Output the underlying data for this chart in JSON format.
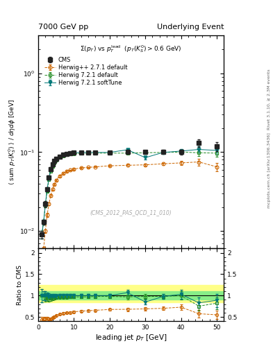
{
  "title_left": "7000 GeV pp",
  "title_right": "Underlying Event",
  "plot_title": "$\\Sigma(p_T)$ vs $p_T^{\\mathrm{lead}}$ $(p_T(K_S^0) > 0.6$ GeV)",
  "ylabel_main": "$\\langle$ sum $p_T(K_S^0)$ $\\rangle$ / $d\\eta d\\phi$ [GeV]",
  "ylabel_ratio": "Ratio to CMS",
  "xlabel": "leading jet $p_T$ [GeV]",
  "right_label1": "Rivet 3.1.10, ≥ 2.3M events",
  "right_label2": "mcplots.cern.ch [arXiv:1306.3436]",
  "watermark": "(CMS_2012_PAS_QCD_11_010)",
  "cms_x": [
    1.0,
    1.5,
    2.0,
    2.5,
    3.0,
    3.5,
    4.0,
    4.5,
    5.0,
    6.0,
    7.0,
    8.0,
    9.0,
    10.0,
    12.0,
    14.0,
    16.0,
    20.0,
    25.0,
    30.0,
    35.0,
    40.0,
    45.0,
    50.0
  ],
  "cms_y": [
    0.009,
    0.013,
    0.022,
    0.034,
    0.048,
    0.061,
    0.07,
    0.077,
    0.082,
    0.088,
    0.092,
    0.095,
    0.097,
    0.098,
    0.099,
    0.099,
    0.099,
    0.099,
    0.1,
    0.1,
    0.101,
    0.1,
    0.13,
    0.118
  ],
  "cms_yerr": [
    0.001,
    0.001,
    0.002,
    0.002,
    0.003,
    0.003,
    0.003,
    0.003,
    0.003,
    0.003,
    0.003,
    0.003,
    0.003,
    0.003,
    0.003,
    0.003,
    0.003,
    0.003,
    0.005,
    0.005,
    0.005,
    0.008,
    0.015,
    0.015
  ],
  "hpp_x": [
    1.0,
    1.5,
    2.0,
    2.5,
    3.0,
    3.5,
    4.0,
    4.5,
    5.0,
    6.0,
    7.0,
    8.0,
    9.0,
    10.0,
    12.0,
    14.0,
    16.0,
    20.0,
    25.0,
    30.0,
    35.0,
    40.0,
    45.0,
    50.0
  ],
  "hpp_y": [
    0.004,
    0.006,
    0.01,
    0.016,
    0.022,
    0.028,
    0.034,
    0.039,
    0.044,
    0.05,
    0.054,
    0.057,
    0.059,
    0.061,
    0.063,
    0.064,
    0.065,
    0.067,
    0.068,
    0.069,
    0.071,
    0.073,
    0.075,
    0.065
  ],
  "hpp_yerr": [
    0.0003,
    0.0003,
    0.0005,
    0.001,
    0.001,
    0.001,
    0.001,
    0.001,
    0.001,
    0.001,
    0.001,
    0.001,
    0.001,
    0.001,
    0.001,
    0.001,
    0.001,
    0.001,
    0.002,
    0.002,
    0.002,
    0.004,
    0.008,
    0.008
  ],
  "h721_x": [
    1.0,
    1.5,
    2.0,
    2.5,
    3.0,
    3.5,
    4.0,
    4.5,
    5.0,
    6.0,
    7.0,
    8.0,
    9.0,
    10.0,
    12.0,
    14.0,
    16.0,
    20.0,
    25.0,
    30.0,
    35.0,
    40.0,
    45.0,
    50.0
  ],
  "h721_y": [
    0.009,
    0.013,
    0.021,
    0.032,
    0.045,
    0.057,
    0.066,
    0.073,
    0.079,
    0.085,
    0.089,
    0.092,
    0.094,
    0.095,
    0.096,
    0.096,
    0.097,
    0.097,
    0.097,
    0.098,
    0.099,
    0.1,
    0.098,
    0.097
  ],
  "h721_yerr": [
    0.001,
    0.001,
    0.001,
    0.001,
    0.002,
    0.002,
    0.002,
    0.002,
    0.002,
    0.002,
    0.002,
    0.002,
    0.002,
    0.002,
    0.002,
    0.002,
    0.002,
    0.002,
    0.003,
    0.003,
    0.003,
    0.005,
    0.008,
    0.01
  ],
  "h721soft_x": [
    1.0,
    1.5,
    2.0,
    2.5,
    3.0,
    3.5,
    4.0,
    4.5,
    5.0,
    6.0,
    7.0,
    8.0,
    9.0,
    10.0,
    12.0,
    14.0,
    16.0,
    20.0,
    25.0,
    30.0,
    35.0,
    40.0,
    45.0,
    50.0
  ],
  "h721soft_y": [
    0.009,
    0.013,
    0.022,
    0.034,
    0.047,
    0.06,
    0.069,
    0.076,
    0.081,
    0.088,
    0.092,
    0.095,
    0.097,
    0.098,
    0.099,
    0.099,
    0.099,
    0.099,
    0.107,
    0.085,
    0.099,
    0.103,
    0.108,
    0.105
  ],
  "h721soft_yerr": [
    0.001,
    0.001,
    0.001,
    0.001,
    0.002,
    0.002,
    0.002,
    0.002,
    0.002,
    0.002,
    0.002,
    0.002,
    0.002,
    0.002,
    0.002,
    0.002,
    0.002,
    0.002,
    0.004,
    0.004,
    0.004,
    0.006,
    0.01,
    0.012
  ],
  "cms_color": "#222222",
  "hpp_color": "#cc6600",
  "h721_color": "#228B22",
  "h721soft_color": "#007777",
  "band_yellow": [
    0.85,
    1.25
  ],
  "band_green": [
    0.9,
    1.1
  ],
  "band_yellow_color": "#ffff88",
  "band_green_color": "#88ee88",
  "ylim_main": [
    0.006,
    3.0
  ],
  "ylim_ratio": [
    0.4,
    2.1
  ],
  "xlim": [
    0,
    52
  ]
}
